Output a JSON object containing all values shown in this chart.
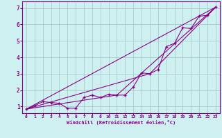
{
  "xlabel": "Windchill (Refroidissement éolien,°C)",
  "background_color": "#cef0f0",
  "grid_color": "#aacccc",
  "line_color": "#880088",
  "xlim": [
    -0.5,
    23.5
  ],
  "ylim": [
    0.6,
    7.4
  ],
  "xticks": [
    0,
    1,
    2,
    3,
    4,
    5,
    6,
    7,
    8,
    9,
    10,
    11,
    12,
    13,
    14,
    15,
    16,
    17,
    18,
    19,
    20,
    21,
    22,
    23
  ],
  "yticks": [
    1,
    2,
    3,
    4,
    5,
    6,
    7
  ],
  "data_x": [
    0,
    1,
    2,
    3,
    4,
    5,
    6,
    7,
    8,
    9,
    10,
    11,
    12,
    13,
    14,
    15,
    16,
    17,
    18,
    19,
    20,
    21,
    22,
    23
  ],
  "data_y": [
    0.85,
    1.05,
    1.3,
    1.25,
    1.2,
    0.9,
    0.9,
    1.55,
    1.7,
    1.55,
    1.75,
    1.7,
    1.7,
    2.2,
    3.05,
    3.0,
    3.25,
    4.65,
    4.85,
    5.8,
    5.75,
    6.5,
    6.55,
    7.05
  ],
  "line2_x": [
    0,
    23
  ],
  "line2_y": [
    0.85,
    7.05
  ],
  "line3_x": [
    0,
    15,
    23
  ],
  "line3_y": [
    0.85,
    3.0,
    7.05
  ],
  "line4_x": [
    0,
    11,
    23
  ],
  "line4_y": [
    0.85,
    1.7,
    7.05
  ]
}
